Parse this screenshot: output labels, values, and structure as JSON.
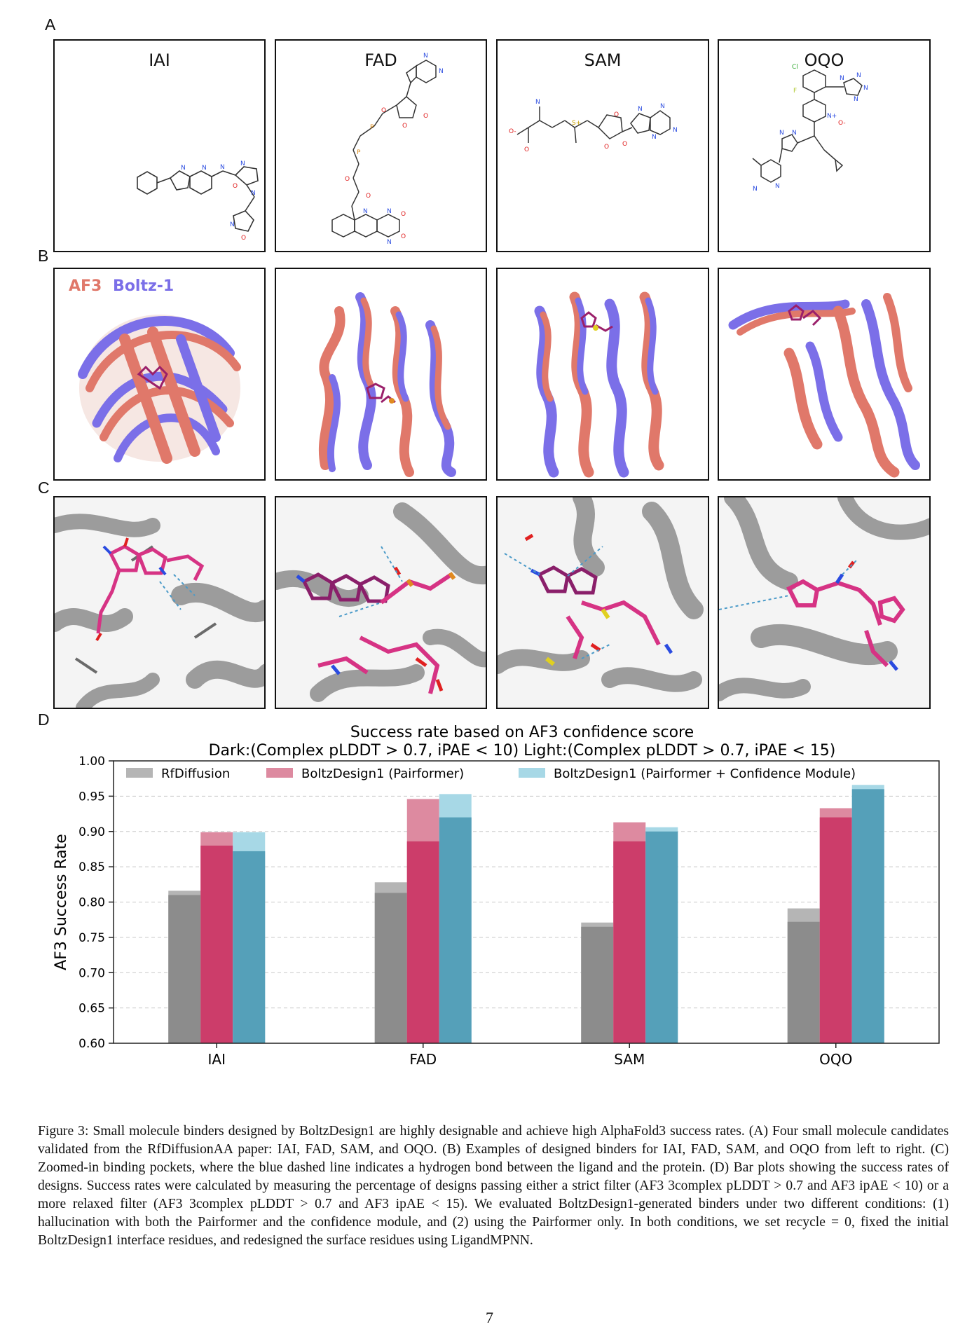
{
  "panels": {
    "a": {
      "letter": "A",
      "molecules": [
        "IAI",
        "FAD",
        "SAM",
        "OQO"
      ]
    },
    "b": {
      "letter": "B",
      "legend_af3": "AF3",
      "legend_boltz": "Boltz-1",
      "colors": {
        "af3": "#e0786a",
        "boltz": "#7b6fe8"
      }
    },
    "c": {
      "letter": "C"
    },
    "d": {
      "letter": "D"
    }
  },
  "chart_data": {
    "type": "bar",
    "title": "Success rate based on AF3 confidence score",
    "subtitle": "Dark:(Complex pLDDT > 0.7, iPAE < 10) Light:(Complex pLDDT > 0.7, iPAE < 15)",
    "ylabel": "AF3 Success Rate",
    "xlabel": "",
    "ylim": [
      0.6,
      1.0
    ],
    "yticks": [
      "0.60",
      "0.65",
      "0.70",
      "0.75",
      "0.80",
      "0.85",
      "0.90",
      "0.95",
      "1.00"
    ],
    "grid": "horizontal-dashed",
    "legend_position": "top",
    "categories": [
      "IAI",
      "FAD",
      "SAM",
      "OQO"
    ],
    "series": [
      {
        "name": "RfDiffusion",
        "color_dark": "#8c8c8c",
        "color_light": "#b5b5b5",
        "dark": [
          0.81,
          0.813,
          0.765,
          0.772
        ],
        "light": [
          0.816,
          0.828,
          0.771,
          0.791
        ]
      },
      {
        "name": "BoltzDesign1 (Pairformer)",
        "color_dark": "#cc3d6a",
        "color_light": "#dd8aa0",
        "dark": [
          0.88,
          0.886,
          0.886,
          0.92
        ],
        "light": [
          0.899,
          0.946,
          0.913,
          0.933
        ]
      },
      {
        "name": "BoltzDesign1 (Pairformer + Confidence Module)",
        "color_dark": "#55a0b9",
        "color_light": "#a7d8e6",
        "dark": [
          0.872,
          0.92,
          0.9,
          0.96
        ],
        "light": [
          0.899,
          0.953,
          0.906,
          0.966
        ]
      }
    ]
  },
  "caption": {
    "label": "Figure 3:",
    "text": "Small molecule binders designed by BoltzDesign1 are highly designable and achieve high AlphaFold3 success rates. (A) Four small molecule candidates validated from the RfDiffusionAA paper: IAI, FAD, SAM, and OQO. (B) Examples of designed binders for IAI, FAD, SAM, and OQO from left to right. (C) Zoomed-in binding pockets, where the blue dashed line indicates a hydrogen bond between the ligand and the protein. (D) Bar plots showing the success rates of designs. Success rates were calculated by measuring the percentage of designs passing either a strict filter (AF3 3complex pLDDT > 0.7 and AF3 ipAE < 10) or a more relaxed filter (AF3 3complex pLDDT > 0.7 and AF3 ipAE < 15). We evaluated BoltzDesign1-generated binders under two different conditions: (1) hallucination with both the Pairformer and the confidence module, and (2) using the Pairformer only. In both conditions, we set recycle = 0, fixed the initial BoltzDesign1 interface residues, and redesigned the surface residues using LigandMPNN."
  },
  "page_number": "7"
}
